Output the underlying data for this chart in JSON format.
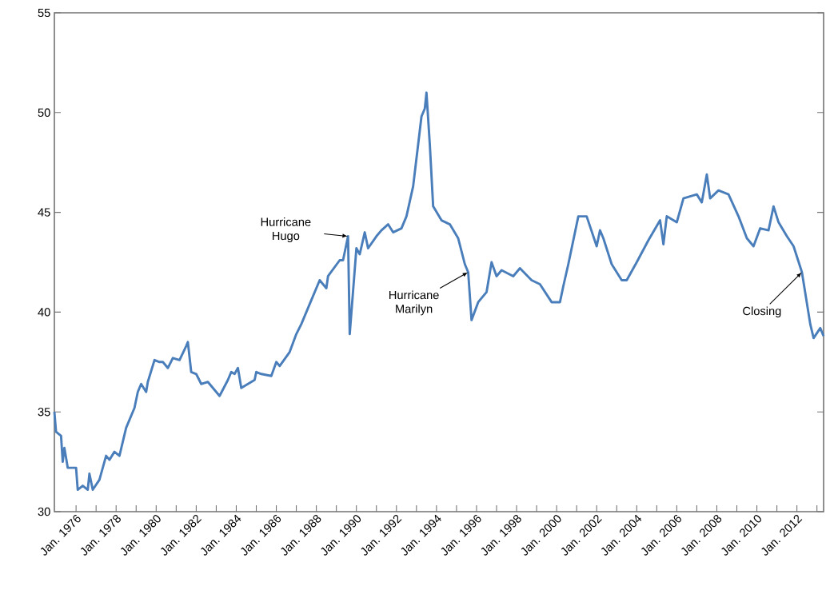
{
  "chart_data": {
    "type": "line",
    "color": "#4a7ebb",
    "line_style": "solid",
    "marker": "none",
    "grid": false,
    "xlim": [
      "1974-12",
      "2013-05"
    ],
    "ylim": [
      30,
      55
    ],
    "yticks": [
      30,
      35,
      40,
      45,
      50,
      55
    ],
    "xticks": [
      {
        "value": "1976-01",
        "label": "Jan. 1976"
      },
      {
        "value": "1977-01",
        "label": null
      },
      {
        "value": "1978-01",
        "label": "Jan. 1978"
      },
      {
        "value": "1979-01",
        "label": null
      },
      {
        "value": "1980-01",
        "label": "Jan. 1980"
      },
      {
        "value": "1981-01",
        "label": null
      },
      {
        "value": "1982-01",
        "label": "Jan. 1982"
      },
      {
        "value": "1983-01",
        "label": null
      },
      {
        "value": "1984-01",
        "label": "Jan. 1984"
      },
      {
        "value": "1985-01",
        "label": null
      },
      {
        "value": "1986-01",
        "label": "Jan. 1986"
      },
      {
        "value": "1987-01",
        "label": null
      },
      {
        "value": "1988-01",
        "label": "Jan. 1988"
      },
      {
        "value": "1989-01",
        "label": null
      },
      {
        "value": "1990-01",
        "label": "Jan. 1990"
      },
      {
        "value": "1991-01",
        "label": null
      },
      {
        "value": "1992-01",
        "label": "Jan. 1992"
      },
      {
        "value": "1993-01",
        "label": null
      },
      {
        "value": "1994-01",
        "label": "Jan. 1994"
      },
      {
        "value": "1995-01",
        "label": null
      },
      {
        "value": "1996-01",
        "label": "Jan. 1996"
      },
      {
        "value": "1997-01",
        "label": null
      },
      {
        "value": "1998-01",
        "label": "Jan. 1998"
      },
      {
        "value": "1999-01",
        "label": null
      },
      {
        "value": "2000-01",
        "label": "Jan. 2000"
      },
      {
        "value": "2001-01",
        "label": null
      },
      {
        "value": "2002-01",
        "label": "Jan. 2002"
      },
      {
        "value": "2003-01",
        "label": null
      },
      {
        "value": "2004-01",
        "label": "Jan. 2004"
      },
      {
        "value": "2005-01",
        "label": null
      },
      {
        "value": "2006-01",
        "label": "Jan. 2006"
      },
      {
        "value": "2007-01",
        "label": null
      },
      {
        "value": "2008-01",
        "label": "Jan. 2008"
      },
      {
        "value": "2009-01",
        "label": null
      },
      {
        "value": "2010-01",
        "label": "Jan. 2010"
      },
      {
        "value": "2011-01",
        "label": null
      },
      {
        "value": "2012-01",
        "label": "Jan. 2012"
      },
      {
        "value": "2013-01",
        "label": null
      }
    ],
    "x": [
      "1974-12",
      "1975-01",
      "1975-04",
      "1975-05",
      "1975-06",
      "1975-08",
      "1976-01",
      "1976-02",
      "1976-05",
      "1976-08",
      "1976-09",
      "1976-11",
      "1977-03",
      "1977-07",
      "1977-09",
      "1977-12",
      "1978-03",
      "1978-07",
      "1978-12",
      "1979-02",
      "1979-04",
      "1979-07",
      "1979-08",
      "1979-12",
      "1980-03",
      "1980-05",
      "1980-08",
      "1980-11",
      "1981-03",
      "1981-07",
      "1981-08",
      "1981-10",
      "1982-01",
      "1982-04",
      "1982-08",
      "1983-03",
      "1983-08",
      "1983-10",
      "1983-12",
      "1984-02",
      "1984-04",
      "1984-12",
      "1985-01",
      "1985-04",
      "1985-10",
      "1986-01",
      "1986-03",
      "1986-09",
      "1987-01",
      "1987-04",
      "1987-10",
      "1988-03",
      "1988-07",
      "1988-08",
      "1989-03",
      "1989-05",
      "1989-08",
      "1989-09",
      "1990-01",
      "1990-03",
      "1990-06",
      "1990-08",
      "1991-01",
      "1991-04",
      "1991-08",
      "1991-11",
      "1992-04",
      "1992-07",
      "1992-11",
      "1993-02",
      "1993-04",
      "1993-06",
      "1993-07",
      "1993-09",
      "1993-11",
      "1994-04",
      "1994-09",
      "1995-02",
      "1995-06",
      "1995-08",
      "1995-10",
      "1996-02",
      "1996-07",
      "1996-10",
      "1997-01",
      "1997-04",
      "1997-11",
      "1998-03",
      "1998-10",
      "1999-03",
      "1999-10",
      "2000-03",
      "2000-05",
      "2000-08",
      "2001-02",
      "2001-07",
      "2002-01",
      "2002-03",
      "2002-05",
      "2002-10",
      "2003-04",
      "2003-07",
      "2004-01",
      "2004-08",
      "2005-03",
      "2005-05",
      "2005-07",
      "2006-01",
      "2006-05",
      "2007-01",
      "2007-04",
      "2007-07",
      "2007-09",
      "2008-02",
      "2008-08",
      "2009-02",
      "2009-07",
      "2009-11",
      "2010-03",
      "2010-08",
      "2010-11",
      "2011-02",
      "2011-07",
      "2011-11",
      "2012-04",
      "2012-09",
      "2012-11",
      "2013-03",
      "2013-05"
    ],
    "values": [
      35.0,
      34.0,
      33.8,
      32.5,
      33.2,
      32.2,
      32.2,
      31.1,
      31.3,
      31.1,
      31.9,
      31.1,
      31.6,
      32.8,
      32.6,
      33.0,
      32.8,
      34.2,
      35.2,
      36.0,
      36.4,
      36.0,
      36.5,
      37.6,
      37.5,
      37.5,
      37.2,
      37.7,
      37.6,
      38.3,
      38.5,
      37.0,
      36.9,
      36.4,
      36.5,
      35.8,
      36.6,
      37.0,
      36.9,
      37.2,
      36.2,
      36.6,
      37.0,
      36.9,
      36.8,
      37.5,
      37.3,
      38.0,
      38.9,
      39.4,
      40.6,
      41.6,
      41.2,
      41.8,
      42.6,
      42.6,
      43.8,
      38.9,
      43.2,
      42.9,
      44.0,
      43.2,
      43.8,
      44.1,
      44.4,
      44.0,
      44.2,
      44.8,
      46.3,
      48.4,
      49.8,
      50.2,
      51.0,
      48.4,
      45.3,
      44.6,
      44.4,
      43.7,
      42.4,
      42.0,
      39.6,
      40.5,
      41.0,
      42.5,
      41.8,
      42.1,
      41.8,
      42.2,
      41.6,
      41.4,
      40.5,
      40.5,
      41.3,
      42.4,
      44.8,
      44.8,
      43.3,
      44.1,
      43.7,
      42.4,
      41.6,
      41.6,
      42.5,
      43.6,
      44.6,
      43.4,
      44.8,
      44.5,
      45.7,
      45.9,
      45.5,
      46.9,
      45.7,
      46.1,
      45.9,
      44.8,
      43.7,
      43.3,
      44.2,
      44.1,
      45.3,
      44.5,
      43.8,
      43.3,
      42.0,
      39.4,
      38.7,
      39.2,
      38.8
    ],
    "annotations": [
      {
        "text": "Hurricane Hugo",
        "x": "1989-08",
        "y": 43.8
      },
      {
        "text": "Hurricane Marilyn",
        "x": "1995-08",
        "y": 42.0
      },
      {
        "text": "Closing",
        "x": "2012-04",
        "y": 42.0
      }
    ]
  }
}
